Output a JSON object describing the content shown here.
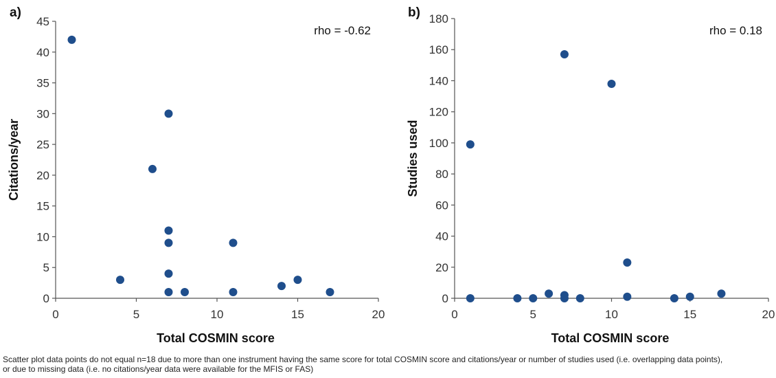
{
  "chart_data": [
    {
      "type": "scatter",
      "panel_label": "a)",
      "xlabel": "Total COSMIN score",
      "ylabel": "Citations/year",
      "xlim": [
        0,
        20
      ],
      "ylim": [
        0,
        45
      ],
      "xticks": [
        0,
        5,
        10,
        15,
        20
      ],
      "yticks": [
        0,
        5,
        10,
        15,
        20,
        25,
        30,
        35,
        40,
        45
      ],
      "annotation": "rho = -0.62",
      "color": "#1f4e8c",
      "points": [
        {
          "x": 1,
          "y": 42
        },
        {
          "x": 4,
          "y": 3
        },
        {
          "x": 6,
          "y": 21
        },
        {
          "x": 7,
          "y": 30
        },
        {
          "x": 7,
          "y": 11
        },
        {
          "x": 7,
          "y": 9
        },
        {
          "x": 7,
          "y": 4
        },
        {
          "x": 7,
          "y": 1
        },
        {
          "x": 8,
          "y": 1
        },
        {
          "x": 11,
          "y": 9
        },
        {
          "x": 11,
          "y": 1
        },
        {
          "x": 14,
          "y": 2
        },
        {
          "x": 15,
          "y": 3
        },
        {
          "x": 17,
          "y": 1
        }
      ]
    },
    {
      "type": "scatter",
      "panel_label": "b)",
      "xlabel": "Total COSMIN score",
      "ylabel": "Studies used",
      "xlim": [
        0,
        20
      ],
      "ylim": [
        0,
        180
      ],
      "xticks": [
        0,
        5,
        10,
        15,
        20
      ],
      "yticks": [
        0,
        20,
        40,
        60,
        80,
        100,
        120,
        140,
        160,
        180
      ],
      "annotation": "rho = 0.18",
      "color": "#1f4e8c",
      "points": [
        {
          "x": 1,
          "y": 99
        },
        {
          "x": 1,
          "y": 0
        },
        {
          "x": 4,
          "y": 0
        },
        {
          "x": 5,
          "y": 0
        },
        {
          "x": 6,
          "y": 3
        },
        {
          "x": 7,
          "y": 157
        },
        {
          "x": 7,
          "y": 2
        },
        {
          "x": 7,
          "y": 0
        },
        {
          "x": 8,
          "y": 0
        },
        {
          "x": 10,
          "y": 138
        },
        {
          "x": 11,
          "y": 23
        },
        {
          "x": 11,
          "y": 1
        },
        {
          "x": 14,
          "y": 0
        },
        {
          "x": 15,
          "y": 1
        },
        {
          "x": 17,
          "y": 3
        }
      ]
    }
  ],
  "footnote": {
    "line1": "Scatter plot data points do not equal n=18 due to more than one instrument having the same score for total COSMIN score and citations/year or number of studies used (i.e. overlapping data points),",
    "line2": "or due to missing data (i.e. no citations/year data were available for the MFIS or FAS)"
  }
}
